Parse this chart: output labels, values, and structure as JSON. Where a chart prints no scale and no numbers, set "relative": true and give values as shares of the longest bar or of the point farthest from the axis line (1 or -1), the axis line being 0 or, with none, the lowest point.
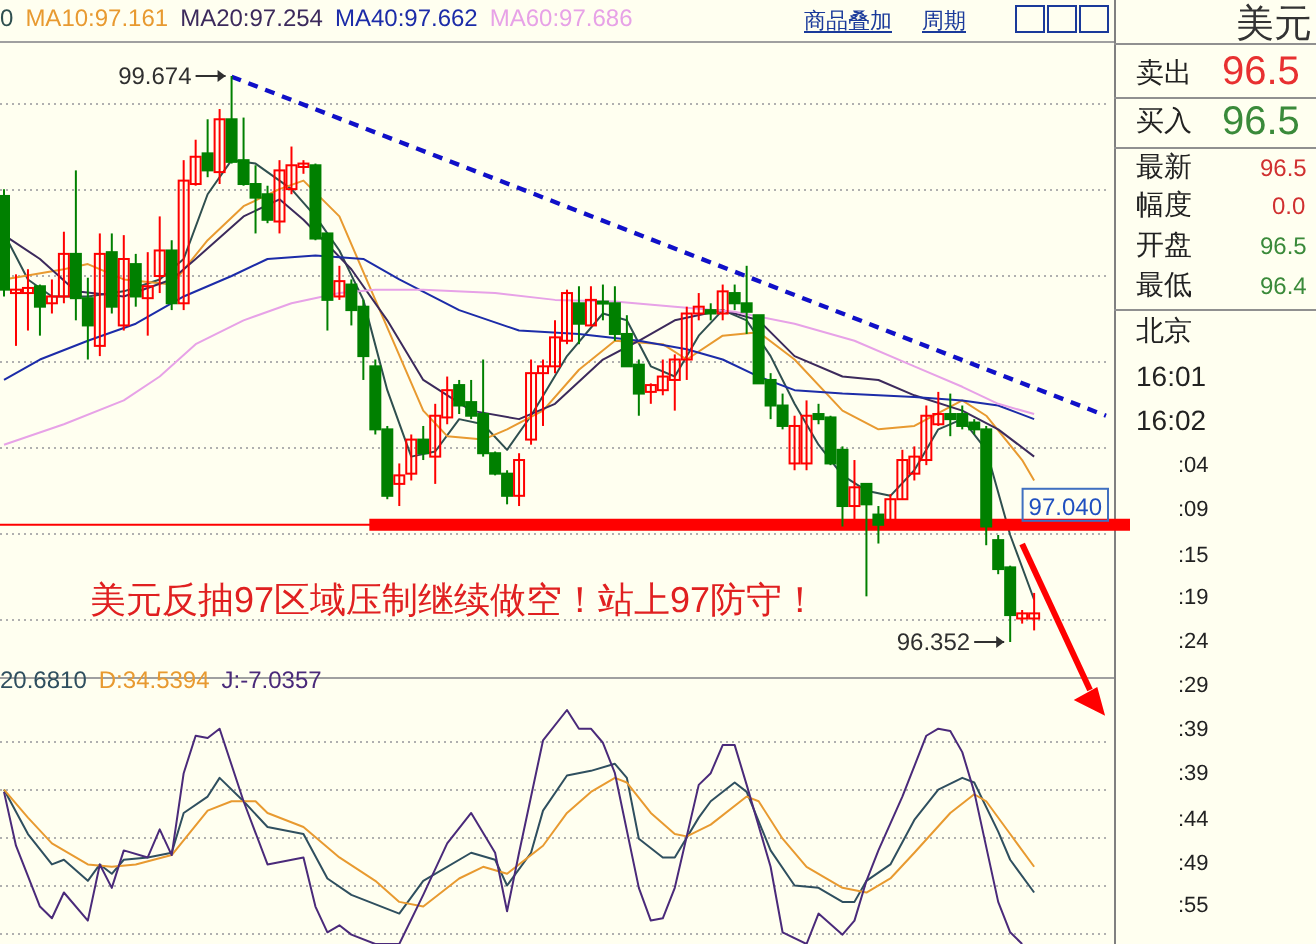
{
  "chart_data": [
    {
      "type": "candlestick",
      "categories": [
        null,
        null,
        null,
        null,
        null,
        null,
        null,
        null,
        null,
        null,
        null,
        null,
        null,
        null,
        null,
        null,
        null,
        null,
        null,
        null,
        null,
        null,
        null,
        null,
        null,
        null,
        null,
        null,
        null,
        null,
        null,
        null,
        null,
        null,
        null,
        null,
        null,
        null,
        null,
        null,
        null,
        null,
        null,
        null,
        null,
        null,
        null,
        null,
        null,
        null,
        null,
        null,
        null,
        null,
        null,
        null,
        null,
        null,
        null,
        null,
        null,
        null,
        null,
        null,
        null,
        null,
        null,
        null,
        null,
        null,
        null,
        null,
        null,
        null,
        null,
        null,
        null,
        null,
        null,
        null,
        null,
        null,
        null,
        null,
        null,
        null,
        null,
        null,
        null,
        null,
        null,
        null,
        null
      ],
      "ohlc": [
        [
          98.97,
          99.01,
          98.38,
          98.42
        ],
        [
          98.4,
          98.51,
          98.09,
          98.42
        ],
        [
          98.4,
          98.54,
          98.18,
          98.43
        ],
        [
          98.44,
          98.45,
          98.15,
          98.32
        ],
        [
          98.34,
          98.48,
          98.28,
          98.38
        ],
        [
          98.38,
          98.76,
          98.34,
          98.63
        ],
        [
          98.63,
          99.12,
          98.24,
          98.37
        ],
        [
          98.37,
          98.49,
          98.01,
          98.21
        ],
        [
          98.09,
          98.75,
          98.03,
          98.63
        ],
        [
          98.64,
          98.75,
          98.28,
          98.32
        ],
        [
          98.21,
          98.74,
          98.18,
          98.6
        ],
        [
          98.57,
          98.63,
          98.32,
          98.38
        ],
        [
          98.37,
          98.64,
          98.15,
          98.44
        ],
        [
          98.5,
          98.85,
          98.4,
          98.65
        ],
        [
          98.65,
          98.71,
          98.3,
          98.34
        ],
        [
          98.34,
          99.18,
          98.3,
          99.06
        ],
        [
          99.04,
          99.3,
          99.03,
          99.2
        ],
        [
          99.22,
          99.42,
          99.08,
          99.12
        ],
        [
          99.11,
          99.48,
          99.04,
          99.42
        ],
        [
          99.42,
          99.674,
          99.16,
          99.17
        ],
        [
          99.18,
          99.43,
          99.03,
          99.04
        ],
        [
          99.04,
          99.15,
          98.75,
          98.96
        ],
        [
          98.98,
          99.03,
          98.81,
          98.83
        ],
        [
          98.82,
          99.18,
          98.75,
          99.12
        ],
        [
          99.01,
          99.26,
          98.98,
          99.15
        ],
        [
          99.14,
          99.18,
          99.1,
          99.16
        ],
        [
          99.15,
          99.16,
          98.71,
          98.72
        ],
        [
          98.75,
          98.75,
          98.18,
          98.36
        ],
        [
          98.38,
          98.56,
          98.36,
          98.47
        ],
        [
          98.45,
          98.48,
          98.21,
          98.3
        ],
        [
          98.32,
          98.36,
          97.89,
          98.03
        ],
        [
          97.97,
          98.01,
          97.57,
          97.6
        ],
        [
          97.6,
          97.62,
          97.19,
          97.21
        ],
        [
          97.28,
          97.4,
          97.15,
          97.33
        ],
        [
          97.34,
          97.57,
          97.3,
          97.54
        ],
        [
          97.54,
          97.62,
          97.42,
          97.46
        ],
        [
          97.44,
          97.75,
          97.28,
          97.68
        ],
        [
          97.67,
          97.91,
          97.63,
          97.83
        ],
        [
          97.86,
          97.89,
          97.69,
          97.74
        ],
        [
          97.76,
          97.89,
          97.66,
          97.68
        ],
        [
          97.69,
          98.01,
          97.44,
          97.46
        ],
        [
          97.46,
          97.47,
          97.33,
          97.34
        ],
        [
          97.34,
          97.36,
          97.16,
          97.21
        ],
        [
          97.21,
          97.46,
          97.15,
          97.42
        ],
        [
          97.54,
          98.01,
          97.51,
          97.93
        ],
        [
          97.93,
          98.01,
          97.62,
          97.97
        ],
        [
          97.97,
          98.24,
          97.93,
          98.14
        ],
        [
          98.12,
          98.42,
          98.1,
          98.4
        ],
        [
          98.34,
          98.44,
          98.1,
          98.22
        ],
        [
          98.21,
          98.44,
          98.21,
          98.36
        ],
        [
          98.35,
          98.45,
          98.24,
          98.34
        ],
        [
          98.34,
          98.44,
          98.12,
          98.16
        ],
        [
          98.16,
          98.27,
          97.97,
          97.97
        ],
        [
          97.98,
          98.01,
          97.68,
          97.81
        ],
        [
          97.82,
          97.87,
          97.75,
          97.86
        ],
        [
          97.83,
          98.01,
          97.8,
          97.91
        ],
        [
          97.89,
          98.04,
          97.71,
          98.01
        ],
        [
          98.01,
          98.32,
          97.89,
          98.28
        ],
        [
          98.28,
          98.4,
          98.24,
          98.32
        ],
        [
          98.3,
          98.34,
          98.24,
          98.28
        ],
        [
          98.28,
          98.45,
          98.24,
          98.41
        ],
        [
          98.4,
          98.45,
          98.3,
          98.34
        ],
        [
          98.34,
          98.56,
          98.16,
          98.29
        ],
        [
          98.27,
          98.27,
          97.87,
          97.87
        ],
        [
          97.89,
          97.93,
          97.66,
          97.74
        ],
        [
          97.74,
          97.81,
          97.6,
          97.62
        ],
        [
          97.4,
          97.68,
          97.36,
          97.62
        ],
        [
          97.4,
          97.77,
          97.36,
          97.68
        ],
        [
          97.69,
          97.75,
          97.63,
          97.66
        ],
        [
          97.67,
          97.68,
          97.39,
          97.4
        ],
        [
          97.48,
          97.5,
          97.03,
          97.15
        ],
        [
          97.15,
          97.42,
          97.03,
          97.26
        ],
        [
          97.28,
          97.28,
          96.62,
          97.16
        ],
        [
          97.1,
          97.15,
          96.93,
          97.04
        ],
        [
          97.04,
          97.22,
          97.03,
          97.19
        ],
        [
          97.19,
          97.48,
          97.19,
          97.42
        ],
        [
          97.34,
          97.5,
          97.3,
          97.44
        ],
        [
          97.42,
          97.74,
          97.39,
          97.68
        ],
        [
          97.63,
          97.82,
          97.62,
          97.69
        ],
        [
          97.69,
          97.81,
          97.56,
          97.66
        ],
        [
          97.69,
          97.74,
          97.6,
          97.62
        ],
        [
          97.64,
          97.66,
          97.57,
          97.6
        ],
        [
          97.6,
          97.62,
          96.92,
          97.03
        ],
        [
          96.95,
          96.98,
          96.75,
          96.78
        ],
        [
          96.79,
          96.8,
          96.352,
          96.51
        ],
        [
          96.49,
          96.54,
          96.46,
          96.52
        ],
        [
          96.49,
          96.64,
          96.42,
          96.52
        ],
        null,
        null,
        null,
        null,
        null,
        null
      ],
      "series": [
        {
          "type": "line",
          "name": "0",
          "color": "#2f4f4f",
          "values": [
            98.75,
            null,
            98.48,
            null,
            98.38,
            null,
            null,
            98.38,
            null,
            null,
            98.41,
            null,
            null,
            98.48,
            null,
            98.6,
            null,
            98.98,
            null,
            99.18,
            null,
            99.16,
            null,
            null,
            99.01,
            null,
            98.85,
            null,
            98.65,
            null,
            98.36,
            null,
            97.83,
            null,
            97.44,
            null,
            97.47,
            null,
            97.66,
            null,
            97.63,
            null,
            97.48,
            null,
            97.68,
            null,
            null,
            98.03,
            null,
            null,
            98.28,
            null,
            98.24,
            null,
            97.97,
            null,
            97.91,
            null,
            98.15,
            null,
            98.3,
            null,
            98.24,
            null,
            98.03,
            null,
            97.75,
            null,
            97.51,
            null,
            97.33,
            null,
            97.24,
            null,
            97.21,
            null,
            97.36,
            null,
            97.6,
            null,
            97.66,
            null,
            97.48,
            null,
            96.98,
            null,
            96.6,
            null,
            null,
            null,
            null,
            null,
            null
          ]
        },
        {
          "type": "line",
          "name": "MA10:97.161",
          "color": "#e89a30",
          "values": [
            98.48,
            null,
            null,
            null,
            null,
            98.54,
            null,
            98.57,
            null,
            null,
            98.48,
            null,
            null,
            null,
            98.45,
            null,
            null,
            98.71,
            null,
            null,
            98.91,
            null,
            null,
            99.01,
            null,
            99.06,
            null,
            null,
            98.85,
            null,
            null,
            98.36,
            null,
            null,
            null,
            97.71,
            null,
            97.56,
            null,
            null,
            97.54,
            null,
            97.6,
            null,
            null,
            97.71,
            null,
            null,
            97.95,
            null,
            null,
            98.12,
            null,
            null,
            null,
            98.1,
            null,
            98.01,
            null,
            null,
            98.15,
            null,
            null,
            98.17,
            null,
            null,
            98.01,
            null,
            null,
            null,
            97.71,
            null,
            null,
            97.6,
            null,
            null,
            97.62,
            null,
            null,
            null,
            97.77,
            null,
            97.68,
            null,
            null,
            97.42,
            97.3,
            null,
            null,
            null,
            null,
            null,
            null
          ]
        },
        {
          "type": "line",
          "name": "MA20:97.254",
          "color": "#3c2a5c",
          "values": [
            98.74,
            null,
            null,
            98.6,
            null,
            null,
            98.41,
            null,
            null,
            null,
            98.38,
            null,
            null,
            null,
            98.48,
            null,
            98.6,
            null,
            null,
            null,
            98.85,
            null,
            null,
            98.95,
            null,
            98.83,
            null,
            null,
            null,
            98.54,
            null,
            null,
            98.24,
            null,
            null,
            97.89,
            null,
            null,
            null,
            97.71,
            null,
            null,
            null,
            97.66,
            null,
            null,
            97.75,
            null,
            null,
            null,
            98.01,
            null,
            null,
            98.12,
            null,
            null,
            98.24,
            null,
            null,
            null,
            98.3,
            null,
            null,
            98.24,
            null,
            null,
            98.03,
            null,
            null,
            null,
            97.91,
            null,
            null,
            97.89,
            null,
            null,
            97.8,
            null,
            null,
            null,
            97.71,
            null,
            null,
            97.6,
            null,
            null,
            97.44,
            null,
            null,
            null,
            null,
            null,
            null
          ]
        },
        {
          "type": "line",
          "name": "MA40:97.662",
          "color": "#1c2ca8",
          "values": [
            97.89,
            null,
            null,
            98.01,
            null,
            null,
            null,
            98.12,
            null,
            null,
            null,
            98.22,
            null,
            null,
            null,
            98.38,
            null,
            null,
            null,
            98.5,
            null,
            null,
            98.6,
            null,
            null,
            null,
            98.62,
            null,
            null,
            null,
            98.6,
            null,
            null,
            98.48,
            null,
            null,
            null,
            null,
            98.3,
            null,
            null,
            null,
            null,
            98.18,
            null,
            null,
            null,
            null,
            98.16,
            null,
            null,
            null,
            null,
            98.12,
            null,
            null,
            null,
            98.07,
            null,
            null,
            98.01,
            null,
            null,
            97.91,
            null,
            null,
            97.83,
            null,
            null,
            null,
            97.81,
            null,
            null,
            97.8,
            null,
            null,
            97.79,
            null,
            null,
            null,
            97.77,
            null,
            null,
            97.74,
            null,
            null,
            97.66,
            null,
            null,
            null,
            null,
            null,
            null
          ]
        },
        {
          "type": "line",
          "name": "MA60:97.686",
          "color": "#e7a2e7",
          "values": [
            97.51,
            null,
            null,
            null,
            null,
            97.63,
            null,
            null,
            null,
            null,
            97.77,
            null,
            null,
            97.91,
            null,
            null,
            98.1,
            null,
            null,
            null,
            98.24,
            null,
            null,
            null,
            98.34,
            null,
            null,
            null,
            98.4,
            null,
            null,
            98.42,
            null,
            null,
            null,
            98.42,
            null,
            null,
            null,
            null,
            null,
            98.4,
            null,
            null,
            null,
            null,
            98.36,
            null,
            null,
            null,
            null,
            98.35,
            null,
            null,
            null,
            null,
            98.32,
            null,
            null,
            null,
            null,
            98.29,
            null,
            null,
            null,
            null,
            98.22,
            null,
            null,
            null,
            null,
            98.12,
            null,
            null,
            null,
            null,
            97.97,
            null,
            null,
            null,
            97.85,
            null,
            null,
            97.75,
            null,
            null,
            97.69,
            null,
            null,
            null,
            null,
            null,
            null
          ]
        },
        {
          "type": "line",
          "color": "#1010c8",
          "line_style": "dashed",
          "values": [
            null,
            null,
            null,
            null,
            null,
            null,
            null,
            null,
            null,
            null,
            null,
            null,
            null,
            null,
            null,
            null,
            null,
            null,
            null,
            99.67,
            null,
            null,
            null,
            null,
            null,
            null,
            null,
            null,
            null,
            null,
            null,
            null,
            null,
            null,
            null,
            null,
            null,
            null,
            null,
            null,
            null,
            null,
            null,
            null,
            null,
            null,
            null,
            null,
            null,
            null,
            null,
            null,
            null,
            null,
            null,
            null,
            null,
            null,
            null,
            null,
            null,
            null,
            null,
            null,
            null,
            null,
            null,
            null,
            null,
            null,
            null,
            null,
            null,
            null,
            null,
            null,
            null,
            null,
            null,
            null,
            null,
            null,
            null,
            null,
            null,
            null,
            null,
            null,
            null,
            null,
            null,
            null,
            97.68
          ]
        }
      ],
      "ref_lines": [
        {
          "axis": "y",
          "value": 97.04,
          "label": "97.040",
          "color": "#ff0000"
        }
      ],
      "annotations": [
        "99.674",
        "96.352",
        "美元反抽97区域压制继续做空！站上97防守！"
      ],
      "legend": "top left",
      "grid": "y"
    },
    {
      "type": "line",
      "relative": true,
      "categories": [
        null,
        null,
        null,
        null,
        null,
        null,
        null,
        null,
        null,
        null,
        null,
        null,
        null,
        null,
        null,
        null,
        null,
        null,
        null,
        null,
        null,
        null,
        null,
        null,
        null,
        null,
        null,
        null,
        null,
        null,
        null,
        null,
        null,
        null,
        null,
        null,
        null,
        null,
        null,
        null,
        null,
        null,
        null,
        null,
        null,
        null,
        null,
        null,
        null,
        null,
        null,
        null,
        null,
        null,
        null,
        null,
        null,
        null,
        null,
        null,
        null,
        null,
        null,
        null,
        null,
        null,
        null,
        null,
        null,
        null,
        null,
        null,
        null,
        null,
        null,
        null,
        null,
        null,
        null,
        null,
        null,
        null,
        null,
        null,
        null,
        null,
        null,
        null,
        null,
        null,
        null,
        null,
        null
      ],
      "series": [
        {
          "name": "20.6810",
          "color": "#2f4f5f",
          "values": [
            0.66,
            null,
            0.47,
            null,
            0.34,
            0.36,
            null,
            0.27,
            0.34,
            0.3,
            0.36,
            null,
            0.37,
            null,
            0.39,
            0.56,
            null,
            0.63,
            0.71,
            null,
            0.61,
            null,
            0.5,
            null,
            null,
            0.47,
            null,
            0.28,
            null,
            0.21,
            null,
            null,
            null,
            0.13,
            null,
            0.27,
            null,
            null,
            null,
            0.39,
            null,
            0.36,
            0.25,
            null,
            0.39,
            0.57,
            null,
            0.72,
            null,
            0.74,
            null,
            0.77,
            0.71,
            0.45,
            null,
            0.37,
            0.37,
            null,
            0.54,
            0.61,
            null,
            0.69,
            0.65,
            null,
            0.4,
            null,
            0.25,
            null,
            0.24,
            null,
            0.18,
            0.18,
            0.27,
            null,
            0.34,
            null,
            0.53,
            null,
            0.66,
            null,
            0.71,
            0.69,
            null,
            0.48,
            0.36,
            null,
            0.22,
            null,
            null,
            null,
            null,
            null,
            null
          ]
        },
        {
          "name": "D:34.5394",
          "color": "#e89a30",
          "values": [
            0.66,
            null,
            0.54,
            null,
            0.43,
            null,
            null,
            0.34,
            null,
            0.33,
            null,
            0.34,
            null,
            null,
            0.38,
            null,
            null,
            0.57,
            null,
            0.61,
            null,
            0.61,
            0.56,
            null,
            null,
            0.5,
            null,
            null,
            0.37,
            null,
            null,
            0.27,
            null,
            0.18,
            null,
            0.16,
            null,
            null,
            0.28,
            null,
            0.33,
            null,
            0.3,
            null,
            null,
            0.42,
            null,
            0.56,
            null,
            0.65,
            null,
            0.71,
            0.69,
            null,
            0.56,
            null,
            0.47,
            0.46,
            null,
            0.51,
            null,
            null,
            0.63,
            0.61,
            null,
            0.45,
            null,
            0.33,
            null,
            null,
            0.24,
            null,
            0.22,
            null,
            0.28,
            null,
            0.39,
            null,
            null,
            0.56,
            null,
            0.64,
            0.61,
            null,
            0.47,
            null,
            0.33,
            null,
            null,
            null,
            null,
            null,
            null
          ]
        },
        {
          "name": "J:-7.0357",
          "color": "#4a2a7a",
          "values": [
            0.65,
            0.42,
            null,
            0.16,
            0.11,
            0.22,
            null,
            0.1,
            0.34,
            0.24,
            0.4,
            null,
            0.37,
            0.49,
            0.38,
            0.73,
            0.89,
            0.88,
            0.92,
            null,
            0.61,
            null,
            0.34,
            null,
            null,
            0.37,
            0.16,
            0.05,
            0.08,
            0.04,
            null,
            0,
            null,
            0,
            null,
            0.21,
            null,
            0.43,
            null,
            0.56,
            null,
            0.39,
            0.14,
            0.39,
            null,
            0.87,
            null,
            1,
            0.92,
            0.92,
            0.86,
            0.73,
            null,
            0.24,
            0.1,
            0.11,
            0.24,
            null,
            0.68,
            0.73,
            0.85,
            0.85,
            0.68,
            null,
            0.33,
            0.05,
            null,
            0,
            0.13,
            null,
            0.04,
            0.1,
            0.27,
            0.4,
            null,
            0.63,
            null,
            0.89,
            0.92,
            0.91,
            0.82,
            0.65,
            null,
            0.18,
            0.05,
            0,
            null,
            null,
            null,
            null,
            null,
            null,
            null
          ]
        }
      ],
      "legend": "top left",
      "grid": "y"
    },
    {
      "type": "other",
      "annotations": [
        "商品叠加",
        "周期",
        "美元",
        "卖出",
        "96.5",
        "买入",
        "96.5",
        "最新",
        "96.5",
        "幅度",
        "0.0",
        "开盘",
        "96.5",
        "最低",
        "96.4",
        "北京",
        "16:01",
        "16:02",
        ":04",
        ":09",
        ":15",
        ":19",
        ":24",
        ":29",
        ":39",
        ":39",
        ":44",
        ":49",
        ":55"
      ],
      "colors": [
        "#1a3a9a",
        "#1a3a9a",
        "#333333",
        "#222222",
        "#e83030",
        "#222222",
        "#3a8a3a",
        "#222222",
        "#d03030",
        "#222222",
        "#d03030",
        "#222222",
        "#3a8a3a",
        "#222222",
        "#3a8a3a",
        "#222222",
        "#222222",
        "#222222",
        "#222222",
        "#222222",
        "#222222",
        "#222222",
        "#222222",
        "#222222",
        "#222222",
        "#222222",
        "#222222",
        "#222222",
        "#222222"
      ]
    }
  ]
}
